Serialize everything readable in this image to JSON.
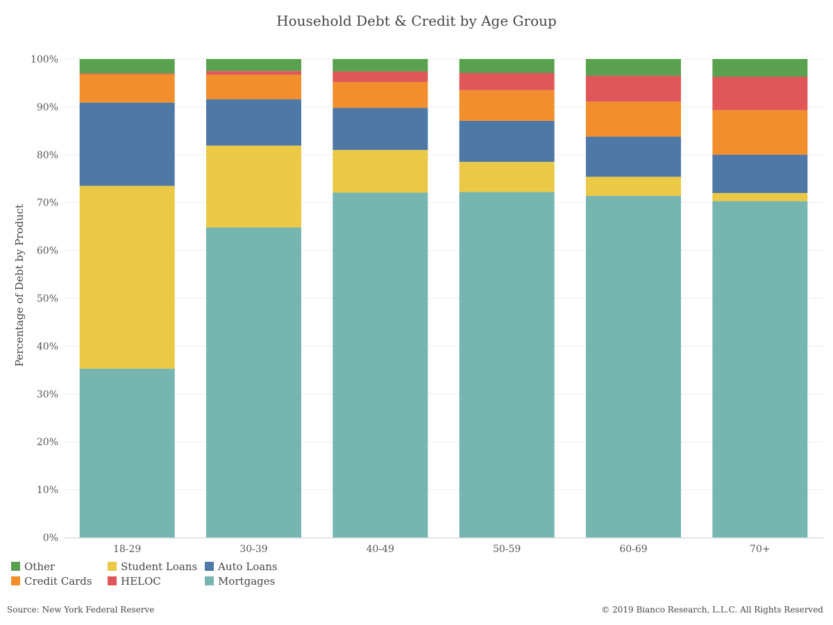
{
  "chart_data": {
    "type": "bar",
    "stacked": true,
    "title": "Household Debt & Credit by Age Group",
    "xlabel": "",
    "ylabel": "Percentage of Debt by Product",
    "ylim": [
      0,
      100
    ],
    "y_ticks": [
      "0%",
      "10%",
      "20%",
      "30%",
      "40%",
      "50%",
      "60%",
      "70%",
      "80%",
      "90%",
      "100%"
    ],
    "grid": true,
    "legend_position": "bottom-left",
    "categories": [
      "18-29",
      "30-39",
      "40-49",
      "50-59",
      "60-69",
      "70+"
    ],
    "series": [
      {
        "name": "Mortgages",
        "color": "#76b5b0",
        "values": [
          35.3,
          64.8,
          72.1,
          72.2,
          71.4,
          70.3
        ]
      },
      {
        "name": "Student Loans",
        "color": "#ebc947",
        "values": [
          38.2,
          17.1,
          8.9,
          6.3,
          4.0,
          1.7
        ]
      },
      {
        "name": "Auto Loans",
        "color": "#4e78a6",
        "values": [
          17.4,
          9.7,
          8.8,
          8.6,
          8.4,
          8.0
        ]
      },
      {
        "name": "Credit Cards",
        "color": "#f28e2b",
        "values": [
          5.9,
          5.1,
          5.4,
          6.4,
          7.3,
          9.3
        ]
      },
      {
        "name": "HELOC",
        "color": "#e05759",
        "values": [
          0.2,
          0.8,
          2.2,
          3.6,
          5.4,
          7.0
        ]
      },
      {
        "name": "Other",
        "color": "#59a14f",
        "values": [
          3.0,
          2.5,
          2.6,
          2.9,
          3.5,
          3.7
        ]
      }
    ],
    "legend_order": [
      "Other",
      "Credit Cards",
      "Student Loans",
      "HELOC",
      "Auto Loans",
      "Mortgages"
    ]
  },
  "footer": {
    "source": "Source: New York Federal Reserve",
    "copyright": "© 2019 Bianco Research, L.L.C. All Rights Reserved"
  }
}
